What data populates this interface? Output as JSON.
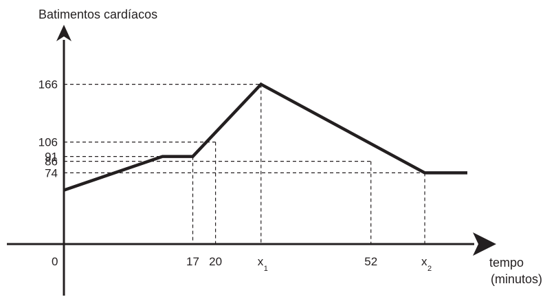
{
  "chart_data": {
    "type": "line",
    "ylabel": "Batimentos cardíacos",
    "xlabel_line1": "tempo",
    "xlabel_line2": "(minutos)",
    "origin_label": "0",
    "x_ticks": [
      {
        "label": "17",
        "value": 17,
        "pos_value": 17
      },
      {
        "label": "20",
        "value": 20,
        "pos_value": 20
      },
      {
        "label": "x",
        "sub": "1",
        "value": null,
        "pos_value": 26
      },
      {
        "label": "52",
        "value": 52,
        "pos_value": 40.5
      },
      {
        "label": "x",
        "sub": "2",
        "value": null,
        "pos_value": 47.6
      }
    ],
    "y_ticks": [
      166,
      106,
      91,
      86,
      74
    ],
    "series": [
      {
        "points": [
          {
            "x": 0,
            "y": 56
          },
          {
            "x": 13,
            "y": 91
          },
          {
            "x": 17,
            "y": 91
          },
          {
            "x": "x1",
            "y": 166
          },
          {
            "x": "x2",
            "y": 74
          },
          {
            "x": "end",
            "y": 74
          }
        ]
      }
    ],
    "guides": [
      {
        "y": 166,
        "x": "x1"
      },
      {
        "y": 106,
        "x": 20
      },
      {
        "y": 91,
        "x": 17
      },
      {
        "y": 86,
        "x": 52
      },
      {
        "y": 74,
        "x": "x2"
      }
    ],
    "grid": false
  }
}
